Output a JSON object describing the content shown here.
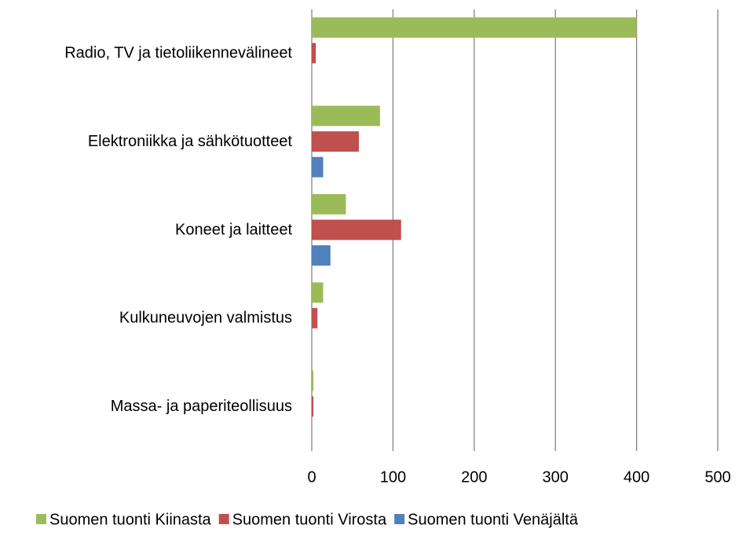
{
  "chart_data": {
    "type": "hbar",
    "categories": [
      "Radio, TV ja tietoliikennevälineet",
      "Elektroniikka ja sähkötuotteet",
      "Koneet ja laitteet",
      "Kulkuneuvojen valmistus",
      "Massa- ja paperiteollisuus"
    ],
    "series": [
      {
        "name": "Suomen tuonti Kiinasta",
        "color": "#9bbb59",
        "values": [
          400,
          84,
          42,
          14,
          2
        ]
      },
      {
        "name": "Suomen tuonti Virosta",
        "color": "#c0504d",
        "values": [
          5,
          58,
          110,
          7,
          2
        ]
      },
      {
        "name": "Suomen tuonti Venäjältä",
        "color": "#4f81bd",
        "values": [
          0,
          14,
          23,
          0,
          0
        ]
      }
    ],
    "xlim": [
      0,
      500
    ],
    "xticks": [
      0,
      100,
      200,
      300,
      400,
      500
    ],
    "grid": true,
    "legend": "bottom"
  }
}
